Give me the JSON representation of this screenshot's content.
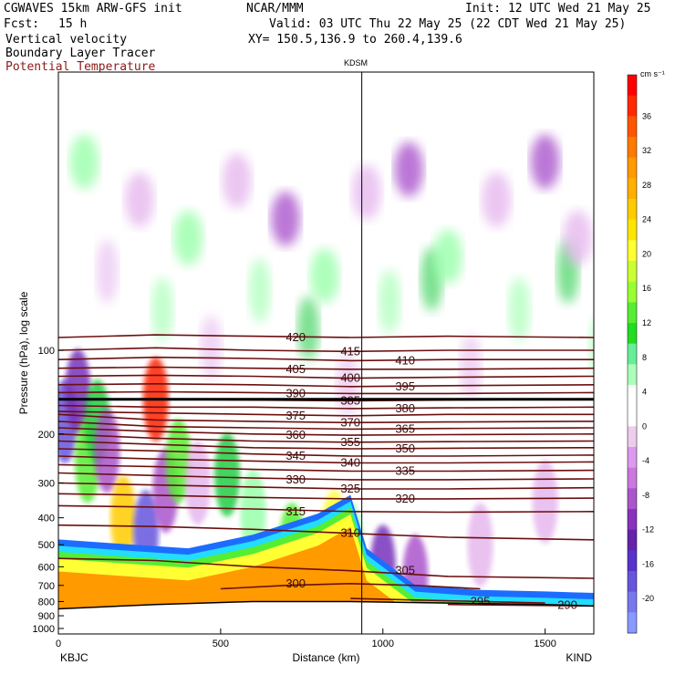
{
  "header": {
    "model": "CGWAVES 15km ARW-GFS init",
    "org": "NCAR/MMM",
    "init": "Init: 12 UTC Wed 21 May 25",
    "fcst_label": "Fcst:",
    "fcst_value": "15 h",
    "valid": "Valid: 03 UTC Thu 22 May 25 (22 CDT Wed 21 May 25)",
    "field1": "Vertical velocity",
    "field2": "Boundary Layer Tracer",
    "field3": "Potential Temperature",
    "xy": "XY= 150.5,136.9 to 260.4,139.6",
    "station_top": "KDSM"
  },
  "colors": {
    "contour": "#6b0f0f",
    "tropopause": "#000000",
    "terrain": "#000000"
  },
  "chart_data": {
    "type": "heatmap",
    "xlabel": "Distance (km)",
    "ylabel": "Pressure (hPa), log scale",
    "xlim": [
      0,
      1650
    ],
    "x_ticks": [
      0,
      500,
      1000,
      1500
    ],
    "y_ticks": [
      100,
      200,
      300,
      400,
      500,
      600,
      700,
      800,
      900,
      1000
    ],
    "y_scale": "log",
    "left_station": "KBJC",
    "right_station": "KIND",
    "marker_station": "KDSM",
    "marker_x_km": 935,
    "colorbar": {
      "unit": "cm s⁻¹",
      "labels": [
        "36",
        "32",
        "28",
        "24",
        "20",
        "16",
        "12",
        "8",
        "4",
        "0",
        "-4",
        "-8",
        "-12",
        "-16",
        "-20"
      ],
      "colors": [
        "#ff0000",
        "#ff2a00",
        "#ff5500",
        "#ff7a00",
        "#ff9a00",
        "#ffb000",
        "#ffcc00",
        "#ffe600",
        "#ffff33",
        "#ccff33",
        "#99ff33",
        "#55ee33",
        "#22dd22",
        "#66ee99",
        "#aaffbb",
        "#ffffff",
        "#ffffff",
        "#eeccee",
        "#dd99ee",
        "#cc77dd",
        "#aa55cc",
        "#8833bb",
        "#6622aa",
        "#5533cc",
        "#6655dd",
        "#7777ee",
        "#8899ff"
      ]
    },
    "isentropes": [
      {
        "level": "420",
        "points": [
          [
            0,
            90
          ],
          [
            300,
            88
          ],
          [
            600,
            89
          ],
          [
            900,
            90
          ],
          [
            1200,
            89
          ],
          [
            1650,
            90
          ]
        ]
      },
      {
        "level": "415",
        "points": [
          [
            0,
            100
          ],
          [
            300,
            98
          ],
          [
            600,
            100
          ],
          [
            900,
            101
          ],
          [
            1200,
            100
          ],
          [
            1650,
            100
          ]
        ]
      },
      {
        "level": "410",
        "points": [
          [
            0,
            108
          ],
          [
            300,
            106
          ],
          [
            600,
            107
          ],
          [
            900,
            109
          ],
          [
            1200,
            108
          ],
          [
            1650,
            108
          ]
        ]
      },
      {
        "level": "405",
        "points": [
          [
            0,
            116
          ],
          [
            300,
            115
          ],
          [
            600,
            116
          ],
          [
            900,
            117
          ],
          [
            1200,
            117
          ],
          [
            1650,
            116
          ]
        ]
      },
      {
        "level": "400",
        "points": [
          [
            0,
            124
          ],
          [
            300,
            123
          ],
          [
            600,
            124
          ],
          [
            900,
            126
          ],
          [
            1200,
            125
          ],
          [
            1650,
            124
          ]
        ]
      },
      {
        "level": "395",
        "points": [
          [
            0,
            133
          ],
          [
            300,
            132
          ],
          [
            600,
            133
          ],
          [
            900,
            135
          ],
          [
            1200,
            134
          ],
          [
            1650,
            133
          ]
        ]
      },
      {
        "level": "390",
        "points": [
          [
            0,
            142
          ],
          [
            300,
            141
          ],
          [
            600,
            142
          ],
          [
            900,
            143
          ],
          [
            1200,
            143
          ],
          [
            1650,
            142
          ]
        ]
      },
      {
        "level": "385",
        "points": [
          [
            0,
            150
          ],
          [
            300,
            150
          ],
          [
            600,
            151
          ],
          [
            900,
            152
          ],
          [
            1200,
            151
          ],
          [
            1650,
            150
          ]
        ]
      },
      {
        "level": "380",
        "points": [
          [
            0,
            158
          ],
          [
            300,
            160
          ],
          [
            600,
            160
          ],
          [
            900,
            162
          ],
          [
            1200,
            161
          ],
          [
            1650,
            160
          ]
        ]
      },
      {
        "level": "375",
        "points": [
          [
            0,
            166
          ],
          [
            300,
            168
          ],
          [
            600,
            170
          ],
          [
            900,
            172
          ],
          [
            1200,
            170
          ],
          [
            1650,
            170
          ]
        ]
      },
      {
        "level": "370",
        "points": [
          [
            0,
            170
          ],
          [
            300,
            178
          ],
          [
            600,
            180
          ],
          [
            900,
            182
          ],
          [
            1200,
            181
          ],
          [
            1650,
            180
          ]
        ]
      },
      {
        "level": "365",
        "points": [
          [
            0,
            180
          ],
          [
            300,
            188
          ],
          [
            600,
            190
          ],
          [
            900,
            192
          ],
          [
            1200,
            191
          ],
          [
            1650,
            190
          ]
        ]
      },
      {
        "level": "360",
        "points": [
          [
            0,
            190
          ],
          [
            300,
            196
          ],
          [
            600,
            200
          ],
          [
            900,
            202
          ],
          [
            1200,
            201
          ],
          [
            1650,
            200
          ]
        ]
      },
      {
        "level": "355",
        "points": [
          [
            0,
            200
          ],
          [
            300,
            207
          ],
          [
            600,
            212
          ],
          [
            900,
            214
          ],
          [
            1200,
            213
          ],
          [
            1650,
            212
          ]
        ]
      },
      {
        "level": "350",
        "points": [
          [
            0,
            212
          ],
          [
            300,
            218
          ],
          [
            600,
            224
          ],
          [
            900,
            226
          ],
          [
            1200,
            225
          ],
          [
            1650,
            224
          ]
        ]
      },
      {
        "level": "345",
        "points": [
          [
            0,
            226
          ],
          [
            300,
            230
          ],
          [
            600,
            236
          ],
          [
            900,
            240
          ],
          [
            1200,
            240
          ],
          [
            1650,
            238
          ]
        ]
      },
      {
        "level": "340",
        "points": [
          [
            0,
            240
          ],
          [
            300,
            246
          ],
          [
            600,
            250
          ],
          [
            900,
            254
          ],
          [
            1200,
            254
          ],
          [
            1650,
            252
          ]
        ]
      },
      {
        "level": "335",
        "points": [
          [
            0,
            258
          ],
          [
            300,
            262
          ],
          [
            600,
            268
          ],
          [
            900,
            272
          ],
          [
            1200,
            272
          ],
          [
            1650,
            270
          ]
        ]
      },
      {
        "level": "330",
        "points": [
          [
            0,
            276
          ],
          [
            300,
            282
          ],
          [
            600,
            288
          ],
          [
            900,
            292
          ],
          [
            1200,
            292
          ],
          [
            1650,
            290
          ]
        ]
      },
      {
        "level": "325",
        "points": [
          [
            0,
            300
          ],
          [
            300,
            305
          ],
          [
            600,
            310
          ],
          [
            900,
            315
          ],
          [
            1200,
            315
          ],
          [
            1650,
            312
          ]
        ]
      },
      {
        "level": "320",
        "points": [
          [
            0,
            328
          ],
          [
            300,
            332
          ],
          [
            600,
            338
          ],
          [
            900,
            342
          ],
          [
            1200,
            342
          ],
          [
            1650,
            340
          ]
        ]
      },
      {
        "level": "315",
        "points": [
          [
            0,
            362
          ],
          [
            300,
            366
          ],
          [
            600,
            372
          ],
          [
            900,
            380
          ],
          [
            1200,
            382
          ],
          [
            1650,
            380
          ]
        ]
      },
      {
        "level": "310",
        "points": [
          [
            0,
            425
          ],
          [
            300,
            430
          ],
          [
            600,
            440
          ],
          [
            900,
            455
          ],
          [
            1200,
            470
          ],
          [
            1650,
            480
          ]
        ]
      },
      {
        "level": "305",
        "points": [
          [
            0,
            560
          ],
          [
            300,
            570
          ],
          [
            600,
            600
          ],
          [
            900,
            620
          ],
          [
            1200,
            650
          ],
          [
            1650,
            660
          ]
        ]
      },
      {
        "level": "300",
        "points": [
          [
            500,
            720
          ],
          [
            700,
            700
          ],
          [
            900,
            690
          ],
          [
            1100,
            700
          ],
          [
            1300,
            720
          ]
        ]
      },
      {
        "level": "295",
        "points": [
          [
            900,
            780
          ],
          [
            1100,
            790
          ],
          [
            1300,
            800
          ],
          [
            1500,
            810
          ]
        ]
      },
      {
        "level": "290",
        "points": [
          [
            1200,
            820
          ],
          [
            1400,
            825
          ],
          [
            1650,
            830
          ]
        ]
      }
    ],
    "tropopause_hPa": 150,
    "terrain_hPa": [
      [
        0,
        850
      ],
      [
        300,
        820
      ],
      [
        600,
        800
      ],
      [
        900,
        800
      ],
      [
        1200,
        810
      ],
      [
        1500,
        820
      ],
      [
        1650,
        830
      ]
    ],
    "w_features": [
      {
        "x": 20,
        "p": 180,
        "w": -16
      },
      {
        "x": 60,
        "p": 140,
        "w": -12
      },
      {
        "x": 90,
        "p": 250,
        "w": 12
      },
      {
        "x": 120,
        "p": 180,
        "w": 8
      },
      {
        "x": 150,
        "p": 230,
        "w": -8
      },
      {
        "x": 200,
        "p": 400,
        "w": 20
      },
      {
        "x": 270,
        "p": 450,
        "w": -16
      },
      {
        "x": 300,
        "p": 150,
        "w": 36
      },
      {
        "x": 330,
        "p": 320,
        "w": -8
      },
      {
        "x": 370,
        "p": 250,
        "w": 12
      },
      {
        "x": 430,
        "p": 300,
        "w": -4
      },
      {
        "x": 520,
        "p": 280,
        "w": 8
      },
      {
        "x": 600,
        "p": 380,
        "w": 4
      },
      {
        "x": 720,
        "p": 500,
        "w": 12
      },
      {
        "x": 850,
        "p": 450,
        "w": 16
      },
      {
        "x": 900,
        "p": 500,
        "w": 4
      },
      {
        "x": 1000,
        "p": 600,
        "w": -12
      },
      {
        "x": 1100,
        "p": 650,
        "w": -8
      },
      {
        "x": 1300,
        "p": 500,
        "w": -4
      },
      {
        "x": 1500,
        "p": 350,
        "w": -4
      }
    ],
    "w_upper": [
      {
        "x": 80,
        "p": 20,
        "w": 4
      },
      {
        "x": 250,
        "p": 30,
        "w": -4
      },
      {
        "x": 400,
        "p": 40,
        "w": 4
      },
      {
        "x": 550,
        "p": 25,
        "w": -4
      },
      {
        "x": 700,
        "p": 35,
        "w": -8
      },
      {
        "x": 820,
        "p": 50,
        "w": 4
      },
      {
        "x": 950,
        "p": 28,
        "w": -4
      },
      {
        "x": 1080,
        "p": 22,
        "w": -8
      },
      {
        "x": 1200,
        "p": 45,
        "w": 4
      },
      {
        "x": 1350,
        "p": 30,
        "w": -4
      },
      {
        "x": 1500,
        "p": 20,
        "w": -8
      },
      {
        "x": 1600,
        "p": 40,
        "w": -4
      }
    ]
  }
}
